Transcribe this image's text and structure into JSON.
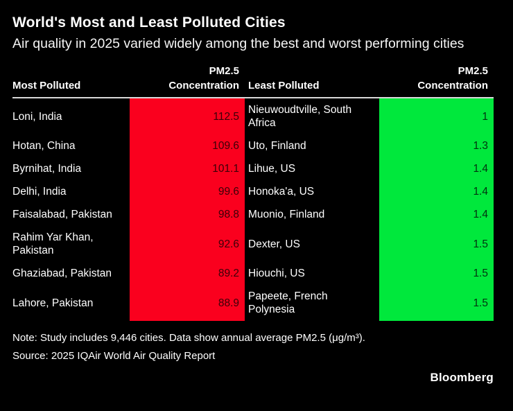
{
  "header": {
    "title": "World's Most and Least Polluted Cities",
    "subtitle": "Air quality in 2025 varied widely among the best and worst performing cities"
  },
  "table": {
    "headers": {
      "most_polluted": "Most Polluted",
      "pm25": "PM2.5\nConcentration",
      "least_polluted": "Least Polluted"
    },
    "rows": [
      {
        "most_city": "Loni, India",
        "most_value": "112.5",
        "least_city": "Nieuwoudtville, South Africa",
        "least_value": "1"
      },
      {
        "most_city": "Hotan, China",
        "most_value": "109.6",
        "least_city": "Uto, Finland",
        "least_value": "1.3"
      },
      {
        "most_city": "Byrnihat, India",
        "most_value": "101.1",
        "least_city": "Lihue, US",
        "least_value": "1.4"
      },
      {
        "most_city": "Delhi, India",
        "most_value": "99.6",
        "least_city": "Honoka'a, US",
        "least_value": "1.4"
      },
      {
        "most_city": "Faisalabad, Pakistan",
        "most_value": "98.8",
        "least_city": "Muonio, Finland",
        "least_value": "1.4"
      },
      {
        "most_city": "Rahim Yar Khan, Pakistan",
        "most_value": "92.6",
        "least_city": "Dexter, US",
        "least_value": "1.5"
      },
      {
        "most_city": "Ghaziabad, Pakistan",
        "most_value": "89.2",
        "least_city": "Hiouchi, US",
        "least_value": "1.5"
      },
      {
        "most_city": "Lahore, Pakistan",
        "most_value": "88.9",
        "least_city": "Papeete, French Polynesia",
        "least_value": "1.5"
      }
    ]
  },
  "footer": {
    "note": "Note: Study includes 9,446 cities. Data show annual average PM2.5 (μg/m³).",
    "source": "Source: 2025 IQAir World Air Quality Report",
    "brand": "Bloomberg"
  },
  "colors": {
    "background": "#000000",
    "most_polluted_fill": "#fa001e",
    "least_polluted_fill": "#00e83c",
    "most_value_text": "#3a0008",
    "least_value_text": "#00320f",
    "text": "#ffffff",
    "header_rule": "#d9d9d9"
  },
  "chart_data": {
    "type": "table",
    "title": "World's Most and Least Polluted Cities",
    "subtitle": "Air quality in 2025 varied widely among the best and worst performing cities",
    "columns": [
      "Most Polluted",
      "PM2.5 Concentration",
      "Least Polluted",
      "PM2.5 Concentration"
    ],
    "most_polluted": {
      "cities": [
        "Loni, India",
        "Hotan, China",
        "Byrnihat, India",
        "Delhi, India",
        "Faisalabad, Pakistan",
        "Rahim Yar Khan, Pakistan",
        "Ghaziabad, Pakistan",
        "Lahore, Pakistan"
      ],
      "values": [
        112.5,
        109.6,
        101.1,
        99.6,
        98.8,
        92.6,
        89.2,
        88.9
      ]
    },
    "least_polluted": {
      "cities": [
        "Nieuwoudtville, South Africa",
        "Uto, Finland",
        "Lihue, US",
        "Honoka'a, US",
        "Muonio, Finland",
        "Dexter, US",
        "Hiouchi, US",
        "Papeete, French Polynesia"
      ],
      "values": [
        1,
        1.3,
        1.4,
        1.4,
        1.4,
        1.5,
        1.5,
        1.5
      ]
    },
    "unit": "annual average PM2.5 (μg/m³)",
    "note": "Study includes 9,446 cities.",
    "source": "2025 IQAir World Air Quality Report",
    "legend_position": "none",
    "grid": false
  }
}
